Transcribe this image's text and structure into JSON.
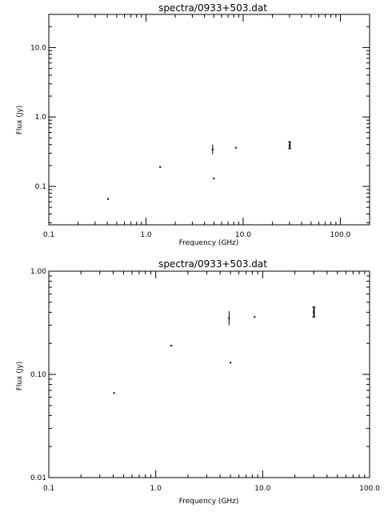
{
  "chart_data": [
    {
      "type": "scatter",
      "title": "spectra/0933+503.dat",
      "xlabel": "Frequency (GHz)",
      "ylabel": "Flux (Jy)",
      "xscale": "log",
      "yscale": "log",
      "xlim": [
        0.1,
        200
      ],
      "ylim": [
        0.028,
        30
      ],
      "x_tick_labels": [
        "0.1",
        "1.0",
        "10.0",
        "100.0"
      ],
      "x_tick_values": [
        0.1,
        1,
        10,
        100
      ],
      "y_tick_labels": [
        "0.1",
        "1.0",
        "10.0"
      ],
      "y_tick_values": [
        0.1,
        1,
        10
      ],
      "grid": false,
      "points": [
        {
          "x": 0.408,
          "y": 0.066,
          "y_low": 0.066,
          "y_high": 0.066
        },
        {
          "x": 1.4,
          "y": 0.19,
          "y_low": 0.19,
          "y_high": 0.19
        },
        {
          "x": 4.85,
          "y": 0.34,
          "y_low": 0.29,
          "y_high": 0.4
        },
        {
          "x": 5.0,
          "y": 0.13,
          "y_low": 0.13,
          "y_high": 0.13
        },
        {
          "x": 8.4,
          "y": 0.36,
          "y_low": 0.36,
          "y_high": 0.36
        },
        {
          "x": 30,
          "y": 0.39,
          "y_low": 0.35,
          "y_high": 0.44
        }
      ]
    },
    {
      "type": "scatter",
      "title": "spectra/0933+503.dat",
      "xlabel": "Frequency (GHz)",
      "ylabel": "Flux (Jy)",
      "xscale": "log",
      "yscale": "log",
      "xlim": [
        0.1,
        100
      ],
      "ylim": [
        0.01,
        1
      ],
      "x_tick_labels": [
        "0.1",
        "1.0",
        "10.0",
        "100.0"
      ],
      "x_tick_values": [
        0.1,
        1,
        10,
        100
      ],
      "y_tick_labels": [
        "0.01",
        "0.10",
        "1.00"
      ],
      "y_tick_values": [
        0.01,
        0.1,
        1
      ],
      "grid": false,
      "points": [
        {
          "x": 0.408,
          "y": 0.066,
          "y_low": 0.066,
          "y_high": 0.066
        },
        {
          "x": 1.4,
          "y": 0.19,
          "y_low": 0.19,
          "y_high": 0.19
        },
        {
          "x": 4.85,
          "y": 0.35,
          "y_low": 0.3,
          "y_high": 0.41
        },
        {
          "x": 5.0,
          "y": 0.13,
          "y_low": 0.13,
          "y_high": 0.13
        },
        {
          "x": 8.4,
          "y": 0.36,
          "y_low": 0.36,
          "y_high": 0.36
        },
        {
          "x": 30,
          "y": 0.4,
          "y_low": 0.36,
          "y_high": 0.45
        }
      ]
    }
  ]
}
